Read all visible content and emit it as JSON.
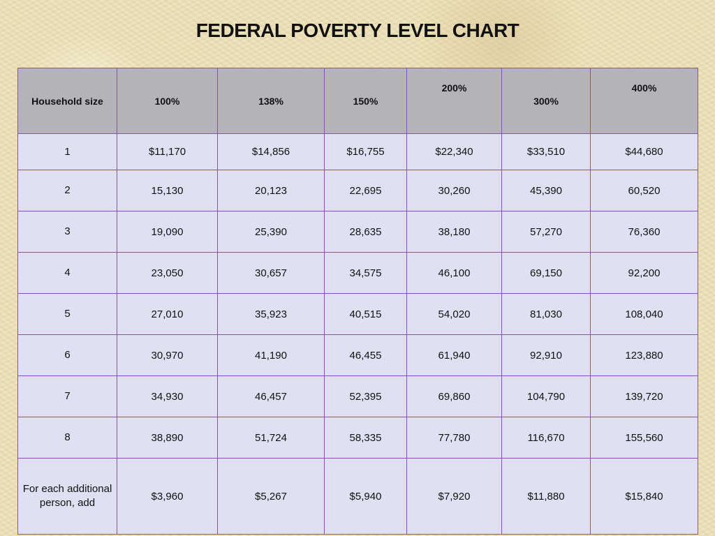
{
  "title": "FEDERAL POVERTY LEVEL CHART",
  "table": {
    "headers": [
      "Household size",
      "100%",
      "138%",
      "150%",
      "200%",
      "300%",
      "400%"
    ],
    "rows": [
      [
        "1",
        "$11,170",
        "$14,856",
        "$16,755",
        "$22,340",
        "$33,510",
        "$44,680"
      ],
      [
        "2",
        "15,130",
        "20,123",
        "22,695",
        "30,260",
        "45,390",
        "60,520"
      ],
      [
        "3",
        "19,090",
        "25,390",
        "28,635",
        "38,180",
        "57,270",
        "76,360"
      ],
      [
        "4",
        "23,050",
        "30,657",
        "34,575",
        "46,100",
        "69,150",
        "92,200"
      ],
      [
        "5",
        "27,010",
        "35,923",
        "40,515",
        "54,020",
        "81,030",
        "108,040"
      ],
      [
        "6",
        "30,970",
        "41,190",
        "46,455",
        "61,940",
        "92,910",
        "123,880"
      ],
      [
        "7",
        "34,930",
        "46,457",
        "52,395",
        "69,860",
        "104,790",
        "139,720"
      ],
      [
        "8",
        "38,890",
        "51,724",
        "58,335",
        "77,780",
        "116,670",
        "155,560"
      ],
      [
        "For each additional person, add",
        "$3,960",
        "$5,267",
        "$5,940",
        "$7,920",
        "$11,880",
        "$15,840"
      ]
    ]
  },
  "colors": {
    "header_background": "#b3b3b8",
    "cell_background": "#dfe1f2",
    "border": "#8a4fb8",
    "page_background": "#ece0b6"
  }
}
